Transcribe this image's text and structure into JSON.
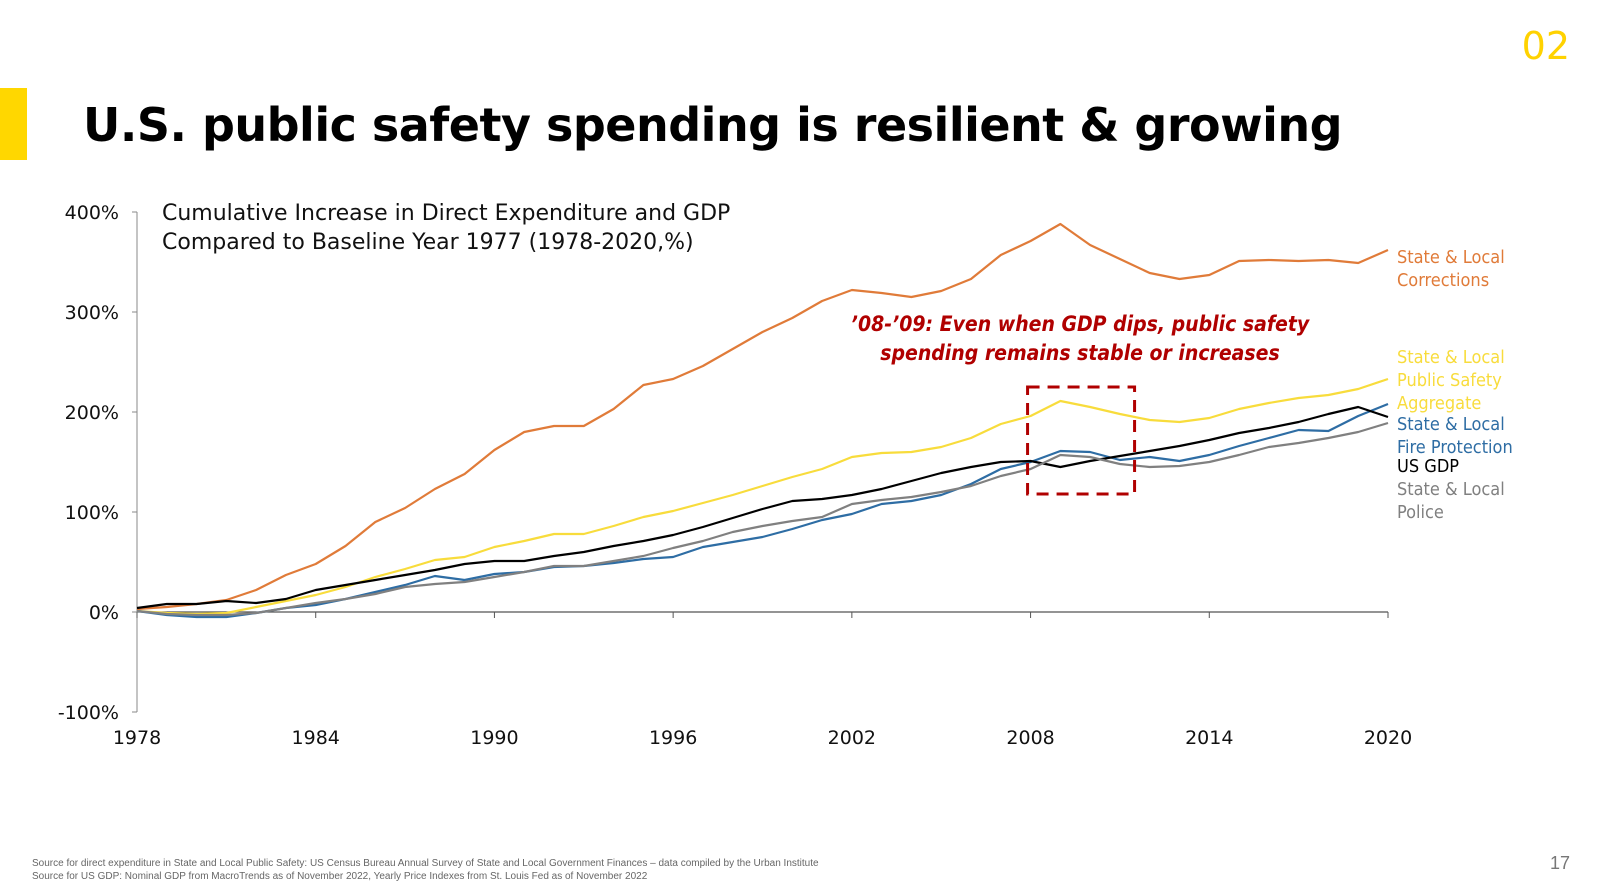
{
  "slide": {
    "section_number": "02",
    "title": "U.S. public safety spending is resilient & growing",
    "page_number": "17",
    "accent_color": "#FFD700"
  },
  "sources": [
    "Source for direct expenditure in State and Local Public Safety:  US Census Bureau Annual Survey of State and Local Government Finances – data compiled by the Urban Institute",
    "Source for US GDP: Nominal GDP from MacroTrends as of November 2022, Yearly Price Indexes from St. Louis Fed as of November 2022"
  ],
  "chart_data": {
    "type": "line",
    "title_lines": [
      "Cumulative Increase in Direct Expenditure and GDP",
      "Compared to Baseline Year 1977 (1978-2020,%)"
    ],
    "annotation": {
      "lines": [
        "’08-’09: Even when GDP dips, public safety",
        "spending remains stable or increases"
      ],
      "color": "#B00000",
      "box_x": [
        2008,
        2014
      ],
      "box_y": [
        118,
        225
      ]
    },
    "xlim": [
      1978,
      2020
    ],
    "ylim": [
      -100,
      400
    ],
    "x_ticks": [
      1978,
      1984,
      1990,
      1996,
      2002,
      2008,
      2014,
      2020
    ],
    "y_ticks": [
      -100,
      0,
      100,
      200,
      300,
      400
    ],
    "y_tick_labels": [
      "-100%",
      "0%",
      "100%",
      "200%",
      "300%",
      "400%"
    ],
    "x": [
      1978,
      1979,
      1980,
      1981,
      1982,
      1983,
      1984,
      1985,
      1986,
      1987,
      1988,
      1989,
      1990,
      1991,
      1992,
      1993,
      1994,
      1995,
      1996,
      1997,
      1998,
      1999,
      2000,
      2001,
      2002,
      2003,
      2004,
      2005,
      2006,
      2007,
      2008,
      2009,
      2010,
      2011,
      2012,
      2013,
      2014,
      2015,
      2016,
      2017,
      2018,
      2019,
      2020
    ],
    "series": [
      {
        "legend_lines": [
          "State & Local",
          "Corrections"
        ],
        "color": "#E07B39",
        "values": [
          3,
          5,
          8,
          12,
          22,
          37,
          48,
          66,
          90,
          104,
          123,
          138,
          162,
          180,
          186,
          186,
          203,
          227,
          233,
          246,
          263,
          280,
          294,
          311,
          322,
          319,
          315,
          321,
          333,
          357,
          371,
          388,
          367,
          353,
          339,
          333,
          337,
          351,
          352,
          351,
          352,
          349,
          362
        ]
      },
      {
        "legend_lines": [
          "State & Local",
          "Public Safety",
          "Aggregate"
        ],
        "color": "#F8DC3C",
        "values": [
          1,
          -1,
          -2,
          -1,
          5,
          11,
          17,
          25,
          35,
          43,
          52,
          55,
          65,
          71,
          78,
          78,
          86,
          95,
          101,
          109,
          117,
          126,
          135,
          143,
          155,
          159,
          160,
          165,
          174,
          188,
          196,
          211,
          205,
          198,
          192,
          190,
          194,
          203,
          209,
          214,
          217,
          223,
          233
        ]
      },
      {
        "legend_lines": [
          "State & Local",
          "Fire Protection"
        ],
        "color": "#2E6DA4",
        "values": [
          1,
          -3,
          -5,
          -5,
          -1,
          4,
          7,
          13,
          20,
          27,
          36,
          32,
          38,
          40,
          45,
          46,
          49,
          53,
          55,
          65,
          70,
          75,
          83,
          92,
          98,
          108,
          111,
          117,
          128,
          143,
          150,
          161,
          160,
          152,
          155,
          151,
          157,
          166,
          174,
          182,
          181,
          196,
          208
        ]
      },
      {
        "legend_lines": [
          "US GDP"
        ],
        "color": "#000000",
        "values": [
          4,
          8,
          8,
          11,
          9,
          13,
          22,
          27,
          32,
          37,
          42,
          48,
          51,
          51,
          56,
          60,
          66,
          71,
          77,
          85,
          94,
          103,
          111,
          113,
          117,
          123,
          131,
          139,
          145,
          150,
          151,
          145,
          151,
          156,
          161,
          166,
          172,
          179,
          184,
          190,
          198,
          205,
          195
        ]
      },
      {
        "legend_lines": [
          "State & Local",
          "Police"
        ],
        "color": "#808080",
        "values": [
          1,
          -2,
          -3,
          -3,
          -1,
          4,
          9,
          13,
          18,
          25,
          28,
          30,
          35,
          40,
          46,
          46,
          51,
          56,
          64,
          71,
          80,
          86,
          91,
          95,
          108,
          112,
          115,
          120,
          126,
          136,
          143,
          157,
          155,
          148,
          145,
          146,
          150,
          157,
          165,
          169,
          174,
          180,
          189
        ]
      }
    ]
  }
}
